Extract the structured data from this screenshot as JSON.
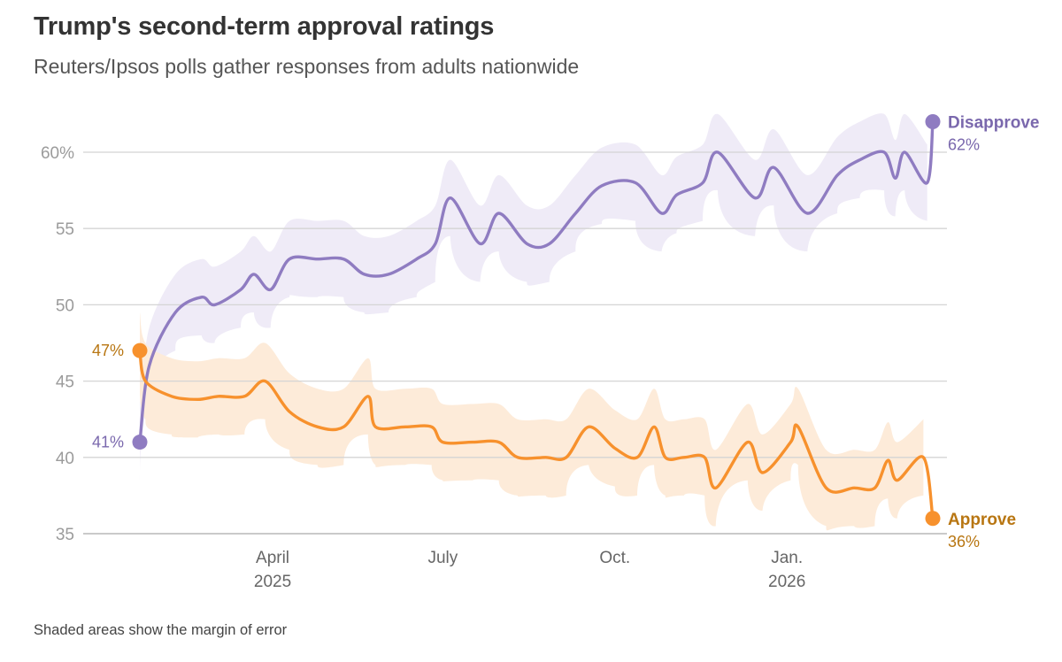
{
  "title": "Trump's second-term approval ratings",
  "subtitle": "Reuters/Ipsos polls gather responses from adults nationwide",
  "note": "Shaded areas show the margin of error",
  "colors": {
    "approve": "#f7912d",
    "approve_text": "#b87612",
    "approve_band": "#fdebd9",
    "disapprove": "#8f7cc1",
    "disapprove_text": "#7a68ad",
    "disapprove_band": "#efebf7",
    "grid": "#d4d4d4",
    "axis": "#b8b8b8"
  },
  "chart_data": {
    "type": "line",
    "title": "Trump's second-term approval ratings",
    "subtitle": "Reuters/Ipsos polls gather responses from adults nationwide",
    "xlabel": "",
    "ylabel": "",
    "ylim": [
      35,
      63
    ],
    "xlim": [
      "2025-01-20",
      "2026-03-20"
    ],
    "grid": true,
    "y_ticks": [
      {
        "value": 35,
        "label": "35"
      },
      {
        "value": 40,
        "label": "40"
      },
      {
        "value": 45,
        "label": "45"
      },
      {
        "value": 50,
        "label": "50"
      },
      {
        "value": 55,
        "label": "55"
      },
      {
        "value": 60,
        "label": "60%"
      }
    ],
    "x_ticks": [
      {
        "date": "2025-04-01",
        "label": "April",
        "sublabel": "2025"
      },
      {
        "date": "2025-07-01",
        "label": "July",
        "sublabel": ""
      },
      {
        "date": "2025-10-01",
        "label": "Oct.",
        "sublabel": ""
      },
      {
        "date": "2026-01-01",
        "label": "Jan.",
        "sublabel": "2026"
      }
    ],
    "series": [
      {
        "name": "Disapprove",
        "start_label": "41%",
        "end_label": "62%",
        "margin": 2.5,
        "points": [
          [
            "2025-01-20",
            41
          ],
          [
            "2025-01-25",
            46
          ],
          [
            "2025-02-08",
            49.5
          ],
          [
            "2025-02-22",
            50.5
          ],
          [
            "2025-03-01",
            50
          ],
          [
            "2025-03-15",
            51
          ],
          [
            "2025-03-22",
            52
          ],
          [
            "2025-03-31",
            51
          ],
          [
            "2025-04-10",
            53
          ],
          [
            "2025-04-25",
            53
          ],
          [
            "2025-05-09",
            53
          ],
          [
            "2025-05-20",
            52
          ],
          [
            "2025-06-02",
            52
          ],
          [
            "2025-06-17",
            53
          ],
          [
            "2025-06-27",
            54
          ],
          [
            "2025-07-05",
            57
          ],
          [
            "2025-07-21",
            54
          ],
          [
            "2025-07-31",
            56
          ],
          [
            "2025-08-15",
            54
          ],
          [
            "2025-08-27",
            54
          ],
          [
            "2025-09-10",
            56
          ],
          [
            "2025-09-24",
            57.8
          ],
          [
            "2025-10-12",
            58
          ],
          [
            "2025-10-26",
            56
          ],
          [
            "2025-11-03",
            57.2
          ],
          [
            "2025-11-17",
            58
          ],
          [
            "2025-11-25",
            60
          ],
          [
            "2025-12-15",
            57
          ],
          [
            "2025-12-25",
            59
          ],
          [
            "2026-01-12",
            56
          ],
          [
            "2026-01-28",
            58.5
          ],
          [
            "2026-02-09",
            59.5
          ],
          [
            "2026-02-22",
            60
          ],
          [
            "2026-02-28",
            58.3
          ],
          [
            "2026-03-05",
            60
          ],
          [
            "2026-03-17",
            58
          ],
          [
            "2026-03-20",
            62
          ]
        ]
      },
      {
        "name": "Approve",
        "start_label": "47%",
        "end_label": "36%",
        "margin": 2.5,
        "points": [
          [
            "2025-01-20",
            47
          ],
          [
            "2025-01-23",
            45
          ],
          [
            "2025-02-06",
            44
          ],
          [
            "2025-02-20",
            43.8
          ],
          [
            "2025-03-03",
            44
          ],
          [
            "2025-03-17",
            44
          ],
          [
            "2025-03-28",
            45
          ],
          [
            "2025-04-10",
            43
          ],
          [
            "2025-04-25",
            42
          ],
          [
            "2025-05-09",
            42
          ],
          [
            "2025-05-22",
            44
          ],
          [
            "2025-05-26",
            42
          ],
          [
            "2025-06-11",
            42
          ],
          [
            "2025-06-25",
            42
          ],
          [
            "2025-07-01",
            41
          ],
          [
            "2025-07-17",
            41
          ],
          [
            "2025-07-31",
            41
          ],
          [
            "2025-08-10",
            40
          ],
          [
            "2025-08-25",
            40
          ],
          [
            "2025-09-05",
            40
          ],
          [
            "2025-09-17",
            42
          ],
          [
            "2025-10-01",
            40.6
          ],
          [
            "2025-10-13",
            40
          ],
          [
            "2025-10-22",
            42
          ],
          [
            "2025-10-28",
            40
          ],
          [
            "2025-11-07",
            40
          ],
          [
            "2025-11-18",
            40
          ],
          [
            "2025-11-24",
            38
          ],
          [
            "2025-12-11",
            41
          ],
          [
            "2025-12-19",
            39
          ],
          [
            "2026-01-03",
            41
          ],
          [
            "2026-01-07",
            42
          ],
          [
            "2026-01-22",
            38
          ],
          [
            "2026-02-06",
            38
          ],
          [
            "2026-02-17",
            38
          ],
          [
            "2026-02-24",
            39.8
          ],
          [
            "2026-03-01",
            38.5
          ],
          [
            "2026-03-15",
            40
          ],
          [
            "2026-03-20",
            36
          ]
        ]
      }
    ]
  }
}
